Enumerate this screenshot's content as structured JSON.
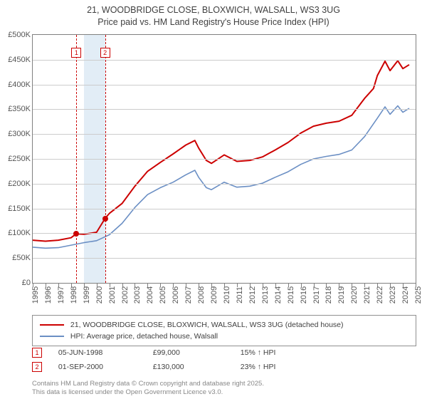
{
  "title": {
    "line1": "21, WOODBRIDGE CLOSE, BLOXWICH, WALSALL, WS3 3UG",
    "line2": "Price paid vs. HM Land Registry's House Price Index (HPI)"
  },
  "chart": {
    "type": "line",
    "background_color": "#ffffff",
    "grid_color": "#cccccc",
    "border_color": "#808080",
    "x_years": [
      1995,
      1996,
      1997,
      1998,
      1999,
      2000,
      2001,
      2002,
      2003,
      2004,
      2005,
      2006,
      2007,
      2008,
      2009,
      2010,
      2011,
      2012,
      2013,
      2014,
      2015,
      2016,
      2017,
      2018,
      2019,
      2020,
      2021,
      2022,
      2023,
      2024,
      2025
    ],
    "xlim": [
      1995,
      2025
    ],
    "ylim": [
      0,
      500000
    ],
    "ytick_step": 50000,
    "ytick_labels": [
      "£0",
      "£50K",
      "£100K",
      "£150K",
      "£200K",
      "£250K",
      "£300K",
      "£350K",
      "£400K",
      "£450K",
      "£500K"
    ],
    "shade_band": {
      "start": 1999.0,
      "end": 2000.67,
      "color": "#e2edf6"
    },
    "series": [
      {
        "name": "price_paid",
        "label": "21, WOODBRIDGE CLOSE, BLOXWICH, WALSALL, WS3 3UG (detached house)",
        "color": "#cc0000",
        "line_width": 2,
        "data": [
          [
            1995,
            86000
          ],
          [
            1996,
            84000
          ],
          [
            1997,
            86000
          ],
          [
            1998,
            91000
          ],
          [
            1998.42,
            99000
          ],
          [
            1999,
            98000
          ],
          [
            1999.5,
            100000
          ],
          [
            2000,
            102000
          ],
          [
            2000.67,
            130000
          ],
          [
            2001,
            140000
          ],
          [
            2002,
            160000
          ],
          [
            2003,
            195000
          ],
          [
            2004,
            225000
          ],
          [
            2005,
            243000
          ],
          [
            2006,
            260000
          ],
          [
            2007,
            278000
          ],
          [
            2007.7,
            287000
          ],
          [
            2008,
            272000
          ],
          [
            2008.6,
            247000
          ],
          [
            2009,
            241000
          ],
          [
            2010,
            258000
          ],
          [
            2011,
            245000
          ],
          [
            2012,
            247000
          ],
          [
            2013,
            254000
          ],
          [
            2014,
            268000
          ],
          [
            2015,
            283000
          ],
          [
            2016,
            302000
          ],
          [
            2017,
            316000
          ],
          [
            2018,
            322000
          ],
          [
            2019,
            326000
          ],
          [
            2020,
            338000
          ],
          [
            2021,
            372000
          ],
          [
            2021.7,
            392000
          ],
          [
            2022,
            418000
          ],
          [
            2022.6,
            447000
          ],
          [
            2023,
            428000
          ],
          [
            2023.6,
            448000
          ],
          [
            2024,
            432000
          ],
          [
            2024.5,
            440000
          ]
        ],
        "markers": [
          {
            "label": "1",
            "x": 1998.42,
            "y": 99000,
            "top_y": 18
          },
          {
            "label": "2",
            "x": 2000.67,
            "y": 130000,
            "top_y": 18
          }
        ]
      },
      {
        "name": "hpi",
        "label": "HPI: Average price, detached house, Walsall",
        "color": "#6b8fc4",
        "line_width": 1.6,
        "data": [
          [
            1995,
            72000
          ],
          [
            1996,
            70000
          ],
          [
            1997,
            71000
          ],
          [
            1998,
            76000
          ],
          [
            1999,
            81000
          ],
          [
            2000,
            85000
          ],
          [
            2001,
            97000
          ],
          [
            2002,
            120000
          ],
          [
            2003,
            152000
          ],
          [
            2004,
            178000
          ],
          [
            2005,
            192000
          ],
          [
            2006,
            203000
          ],
          [
            2007,
            218000
          ],
          [
            2007.7,
            227000
          ],
          [
            2008,
            213000
          ],
          [
            2008.6,
            192000
          ],
          [
            2009,
            188000
          ],
          [
            2010,
            203000
          ],
          [
            2011,
            193000
          ],
          [
            2012,
            195000
          ],
          [
            2013,
            201000
          ],
          [
            2014,
            213000
          ],
          [
            2015,
            224000
          ],
          [
            2016,
            239000
          ],
          [
            2017,
            250000
          ],
          [
            2018,
            255000
          ],
          [
            2019,
            259000
          ],
          [
            2020,
            268000
          ],
          [
            2021,
            295000
          ],
          [
            2022,
            332000
          ],
          [
            2022.6,
            355000
          ],
          [
            2023,
            340000
          ],
          [
            2023.6,
            357000
          ],
          [
            2024,
            344000
          ],
          [
            2024.5,
            352000
          ]
        ]
      }
    ]
  },
  "legend": {
    "item1": "21, WOODBRIDGE CLOSE, BLOXWICH, WALSALL, WS3 3UG (detached house)",
    "item2": "HPI: Average price, detached house, Walsall",
    "color1": "#cc0000",
    "color2": "#6b8fc4"
  },
  "sales": [
    {
      "num": "1",
      "date": "05-JUN-1998",
      "price": "£99,000",
      "vs": "15% ↑ HPI"
    },
    {
      "num": "2",
      "date": "01-SEP-2000",
      "price": "£130,000",
      "vs": "23% ↑ HPI"
    }
  ],
  "attribution": {
    "line1": "Contains HM Land Registry data © Crown copyright and database right 2025.",
    "line2": "This data is licensed under the Open Government Licence v3.0."
  }
}
